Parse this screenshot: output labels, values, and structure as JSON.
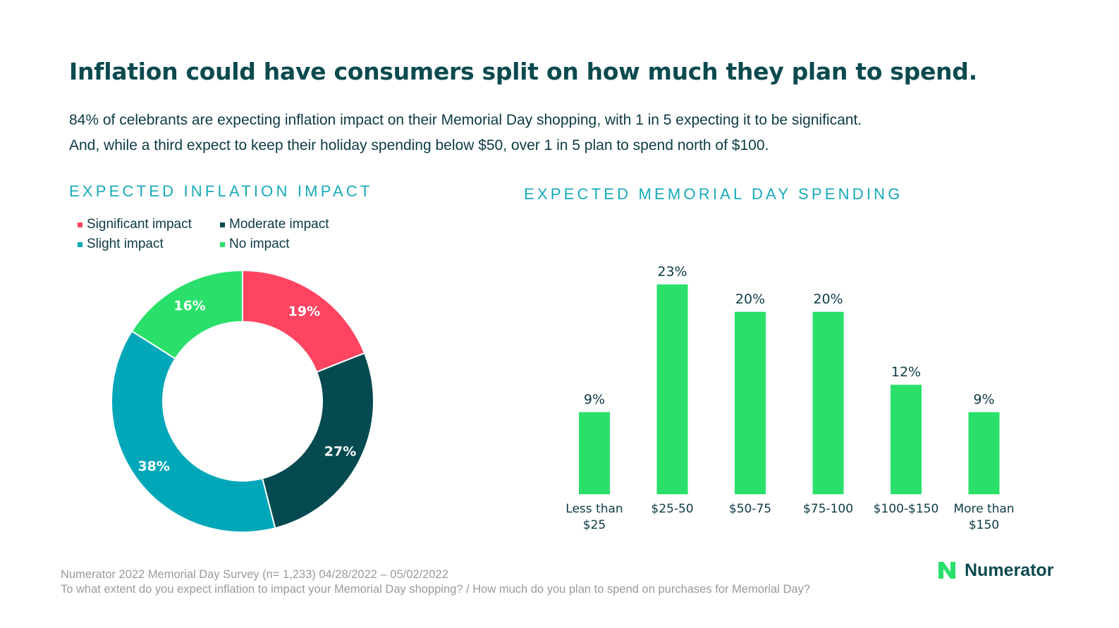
{
  "title": "Inflation could have consumers split on how much they plan to spend.",
  "subtitle": [
    "84% of celebrants are expecting inflation impact on their Memorial Day shopping, with 1 in 5 expecting it to be significant.",
    "And, while a third expect to keep their holiday spending below $50, over 1 in 5 plan to spend north of $100."
  ],
  "chart_data": [
    {
      "type": "pie",
      "variant": "donut",
      "title": "EXPECTED INFLATION IMPACT",
      "legend_position": "top-left",
      "categories": [
        "Significant impact",
        "Moderate impact",
        "Slight impact",
        "No impact"
      ],
      "values": [
        19,
        27,
        38,
        16
      ],
      "labels": [
        "19%",
        "27%",
        "38%",
        "16%"
      ],
      "colors": [
        "#fe4461",
        "#054a50",
        "#00a7b8",
        "#2ae06b"
      ]
    },
    {
      "type": "bar",
      "title": "EXPECTED MEMORIAL DAY SPENDING",
      "categories": [
        [
          "Less than",
          "$25"
        ],
        [
          "$25-50"
        ],
        [
          "$50-75"
        ],
        [
          "$75-100"
        ],
        [
          "$100-$150"
        ],
        [
          "More than",
          "$150"
        ]
      ],
      "values": [
        9,
        23,
        20,
        20,
        12,
        9
      ],
      "labels": [
        "9%",
        "23%",
        "20%",
        "20%",
        "12%",
        "9%"
      ],
      "color": "#2ae06b",
      "ylim": [
        0,
        23
      ]
    }
  ],
  "footer": [
    "Numerator 2022 Memorial Day Survey (n= 1,233) 04/28/2022 – 05/02/2022",
    "To what extent do you expect inflation to impact your Memorial Day shopping? / How much do you plan to spend on purchases for Memorial Day?"
  ],
  "logo": {
    "text": "Numerator",
    "icon": "numerator-n-icon",
    "color": "#2ae06b"
  }
}
